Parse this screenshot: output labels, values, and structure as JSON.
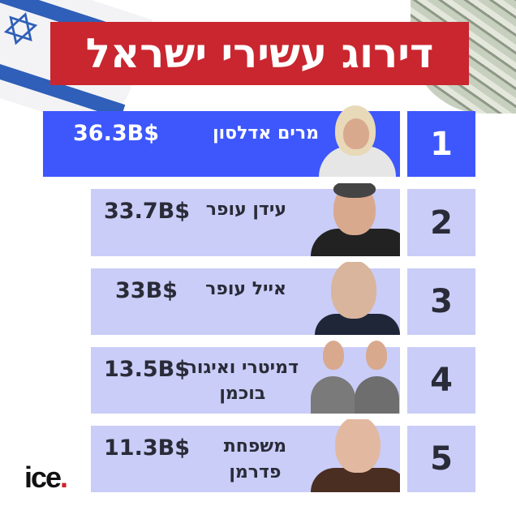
{
  "title": "דירוג עשירי ישראל",
  "colors": {
    "title_bg": "#c9262f",
    "highlight": "#3d57fd",
    "card": "#c9cdf7"
  },
  "ranking": [
    {
      "rank": "1",
      "name": "מרים אדלסון",
      "name2": "",
      "worth": "36.3B$"
    },
    {
      "rank": "2",
      "name": "עידן עופר",
      "name2": "",
      "worth": "33.7B$"
    },
    {
      "rank": "3",
      "name": "אייל עופר",
      "name2": "",
      "worth": "33B$"
    },
    {
      "rank": "4",
      "name": "דמיטרי ואיגור",
      "name2": "בוכמן",
      "worth": "13.5B$"
    },
    {
      "rank": "5",
      "name": "משפחת",
      "name2": "פדרמן",
      "worth": "11.3B$"
    }
  ],
  "logo": {
    "text": "ice",
    "dot": "."
  }
}
